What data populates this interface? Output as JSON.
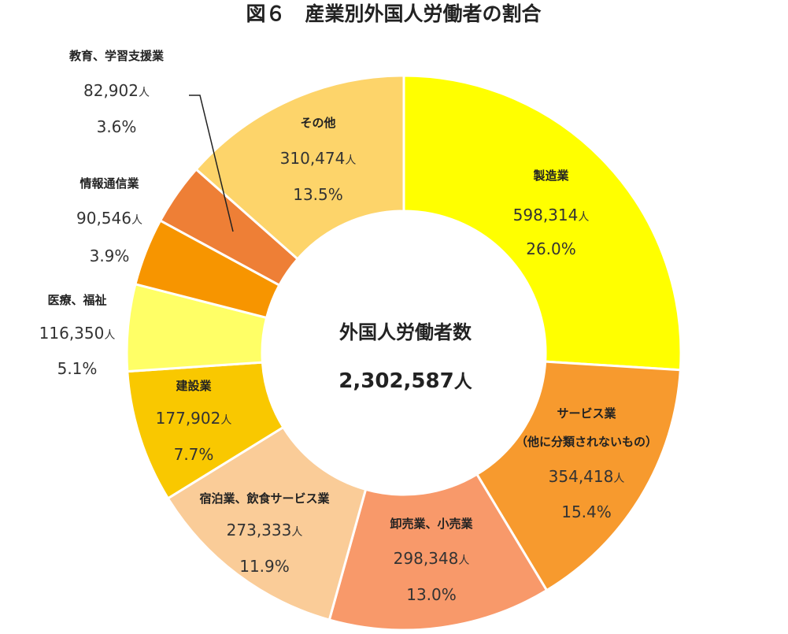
{
  "chart_data": {
    "type": "pie",
    "title": "図６　産業別外国人労働者の割合",
    "center": {
      "label": "外国人労働者数",
      "total": "2,302,587",
      "unit": "人"
    },
    "unit": "人",
    "series": [
      {
        "name": "製造業",
        "value": 598314,
        "value_label": "598,314",
        "percent": "26.0%",
        "color": "#FFFF00"
      },
      {
        "name": "サービス業",
        "name_line2": "（他に分類されないもの）",
        "value": 354418,
        "value_label": "354,418",
        "percent": "15.4%",
        "color": "#F79A2E"
      },
      {
        "name": "卸売業、小売業",
        "value": 298348,
        "value_label": "298,348",
        "percent": "13.0%",
        "color": "#F8996A"
      },
      {
        "name": "宿泊業、飲食サービス業",
        "value": 273333,
        "value_label": "273,333",
        "percent": "11.9%",
        "color": "#FACC98"
      },
      {
        "name": "建設業",
        "value": 177902,
        "value_label": "177,902",
        "percent": "7.7%",
        "color": "#F9C800"
      },
      {
        "name": "医療、福祉",
        "value": 116350,
        "value_label": "116,350",
        "percent": "5.1%",
        "color": "#FFFF66"
      },
      {
        "name": "情報通信業",
        "value": 90546,
        "value_label": "90,546",
        "percent": "3.9%",
        "color": "#F79500"
      },
      {
        "name": "教育、学習支援業",
        "value": 82902,
        "value_label": "82,902",
        "percent": "3.6%",
        "color": "#EE7F36"
      },
      {
        "name": "その他",
        "value": 310474,
        "value_label": "310,474",
        "percent": "13.5%",
        "color": "#FDD46A"
      }
    ]
  }
}
